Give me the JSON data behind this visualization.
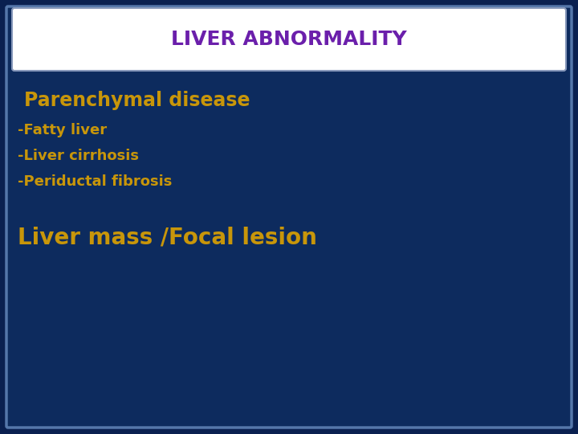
{
  "title": "LIVER ABNORMALITY",
  "title_color": "#6B1FAB",
  "title_fontsize": 18,
  "title_box_bg": "#FFFFFF",
  "title_box_edge": "#8899BB",
  "background_color": "#0D2B5E",
  "outer_border_color_dark": "#0A2050",
  "outer_border_color_light": "#5577AA",
  "section1_heading": "Parenchymal disease",
  "section1_heading_color": "#C8960A",
  "section1_heading_fontsize": 17,
  "section1_items": [
    "-Fatty liver",
    "-Liver cirrhosis",
    "-Periductal fibrosis"
  ],
  "section1_item_color": "#C8960A",
  "section1_item_fontsize": 13,
  "section2_heading": "Liver mass /Focal lesion",
  "section2_heading_color": "#C8960A",
  "section2_heading_fontsize": 20
}
